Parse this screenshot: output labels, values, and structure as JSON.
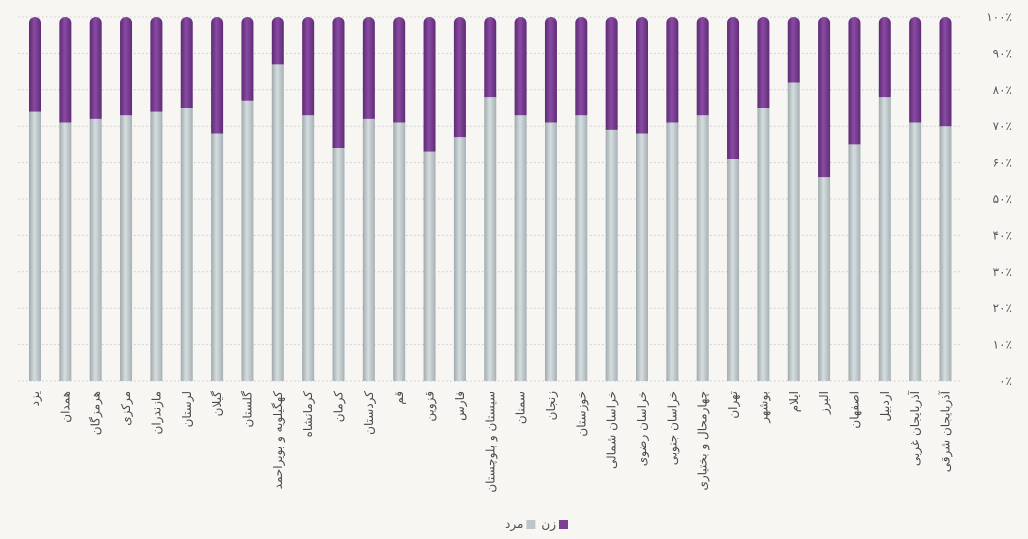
{
  "chart_data": {
    "type": "bar",
    "stacked": true,
    "percent_stacked": true,
    "categories": [
      "یزد",
      "همدان",
      "هرمزگان",
      "مرکزی",
      "مازندران",
      "لرستان",
      "گیلان",
      "گلستان",
      "کهگیلویه و بویراحمد",
      "کرمانشاه",
      "کرمان",
      "کردستان",
      "قم",
      "قزوین",
      "فارس",
      "سیستان و بلوچستان",
      "سمنان",
      "زنجان",
      "خوزستان",
      "خراسان شمالی",
      "خراسان رضوی",
      "خراسان جنوبی",
      "چهارمحال و بختیاری",
      "تهران",
      "بوشهر",
      "ایلام",
      "البرز",
      "اصفهان",
      "اردبیل",
      "آذربایجان غربی",
      "آذربایجان شرقی"
    ],
    "series": [
      {
        "name": "مرد",
        "color": "#bcc6c9",
        "values": [
          74,
          71,
          72,
          73,
          74,
          75,
          68,
          77,
          87,
          73,
          64,
          72,
          71,
          63,
          67,
          78,
          73,
          71,
          73,
          69,
          68,
          71,
          73,
          61,
          75,
          82,
          56,
          65,
          78,
          71,
          70
        ]
      },
      {
        "name": "زن",
        "color": "#7a3f92",
        "values": [
          26,
          29,
          28,
          27,
          26,
          25,
          32,
          23,
          13,
          27,
          36,
          28,
          29,
          37,
          33,
          22,
          27,
          29,
          27,
          31,
          32,
          29,
          27,
          39,
          25,
          18,
          44,
          35,
          22,
          29,
          30
        ]
      }
    ],
    "y_ticks": [
      "۰٪",
      "۱۰٪",
      "۲۰٪",
      "۳۰٪",
      "۴۰٪",
      "۵۰٪",
      "۶۰٪",
      "۷۰٪",
      "۸۰٪",
      "۹۰٪",
      "۱۰۰٪"
    ],
    "ylim": [
      0,
      100
    ],
    "y_axis_side": "right",
    "grid": true,
    "legend_position": "bottom-center",
    "legend": [
      {
        "label": "زن",
        "color": "#7a3f92"
      },
      {
        "label": "مرد",
        "color": "#bcc6c9"
      }
    ]
  }
}
